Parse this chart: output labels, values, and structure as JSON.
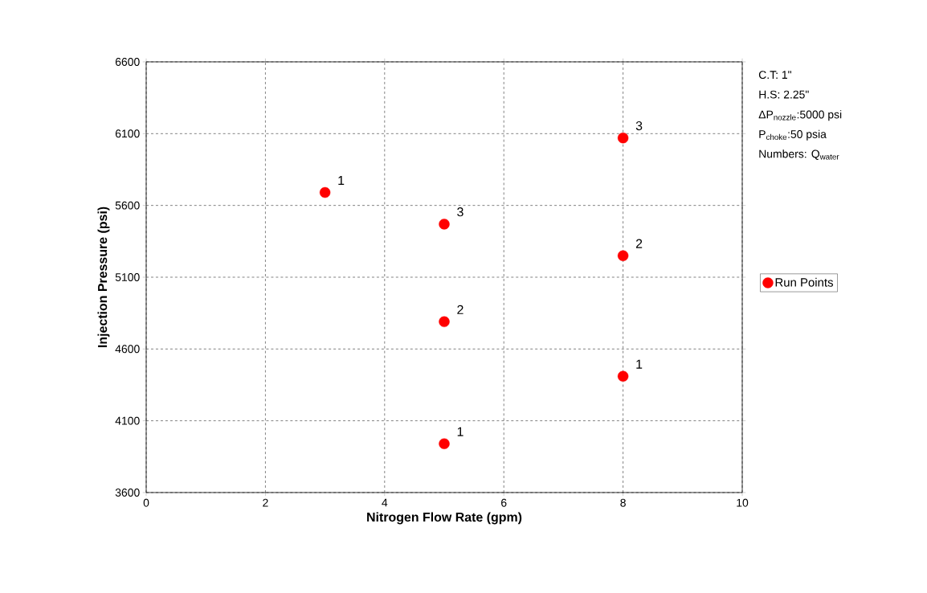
{
  "chart_data": {
    "type": "scatter",
    "xlabel": "Nitrogen Flow Rate (gpm)",
    "ylabel": "Injection Pressure (psi)",
    "x": [
      3,
      5,
      5,
      5,
      8,
      8,
      8
    ],
    "series": [
      {
        "name": "Run Points",
        "color": "#ff0000",
        "values": [
          5690,
          5470,
          4790,
          3940,
          6070,
          5250,
          4410
        ]
      }
    ],
    "xlim": [
      0,
      10
    ],
    "xticks": [
      0,
      2,
      4,
      6,
      8,
      10
    ],
    "ylim": [
      3600,
      6600
    ],
    "yticks": [
      3600,
      4100,
      4600,
      5100,
      5600,
      6100,
      6600
    ],
    "grid": true,
    "legend": "right",
    "marker": "circle",
    "annotations": [
      "C.T: 1\"",
      "H.S: 2.25\"",
      "ΔP$_{nozzle}$:5000 psi",
      "P$_{choke}$:50 psia",
      "Numbers: Q$_{water}$",
      {
        "text": "1",
        "x": 3,
        "y": 5690
      },
      {
        "text": "3",
        "x": 5,
        "y": 5470
      },
      {
        "text": "2",
        "x": 5,
        "y": 4790
      },
      {
        "text": "1",
        "x": 5,
        "y": 3940
      },
      {
        "text": "3",
        "x": 8,
        "y": 6070
      },
      {
        "text": "2",
        "x": 8,
        "y": 5250
      },
      {
        "text": "1",
        "x": 8,
        "y": 4410
      }
    ]
  }
}
